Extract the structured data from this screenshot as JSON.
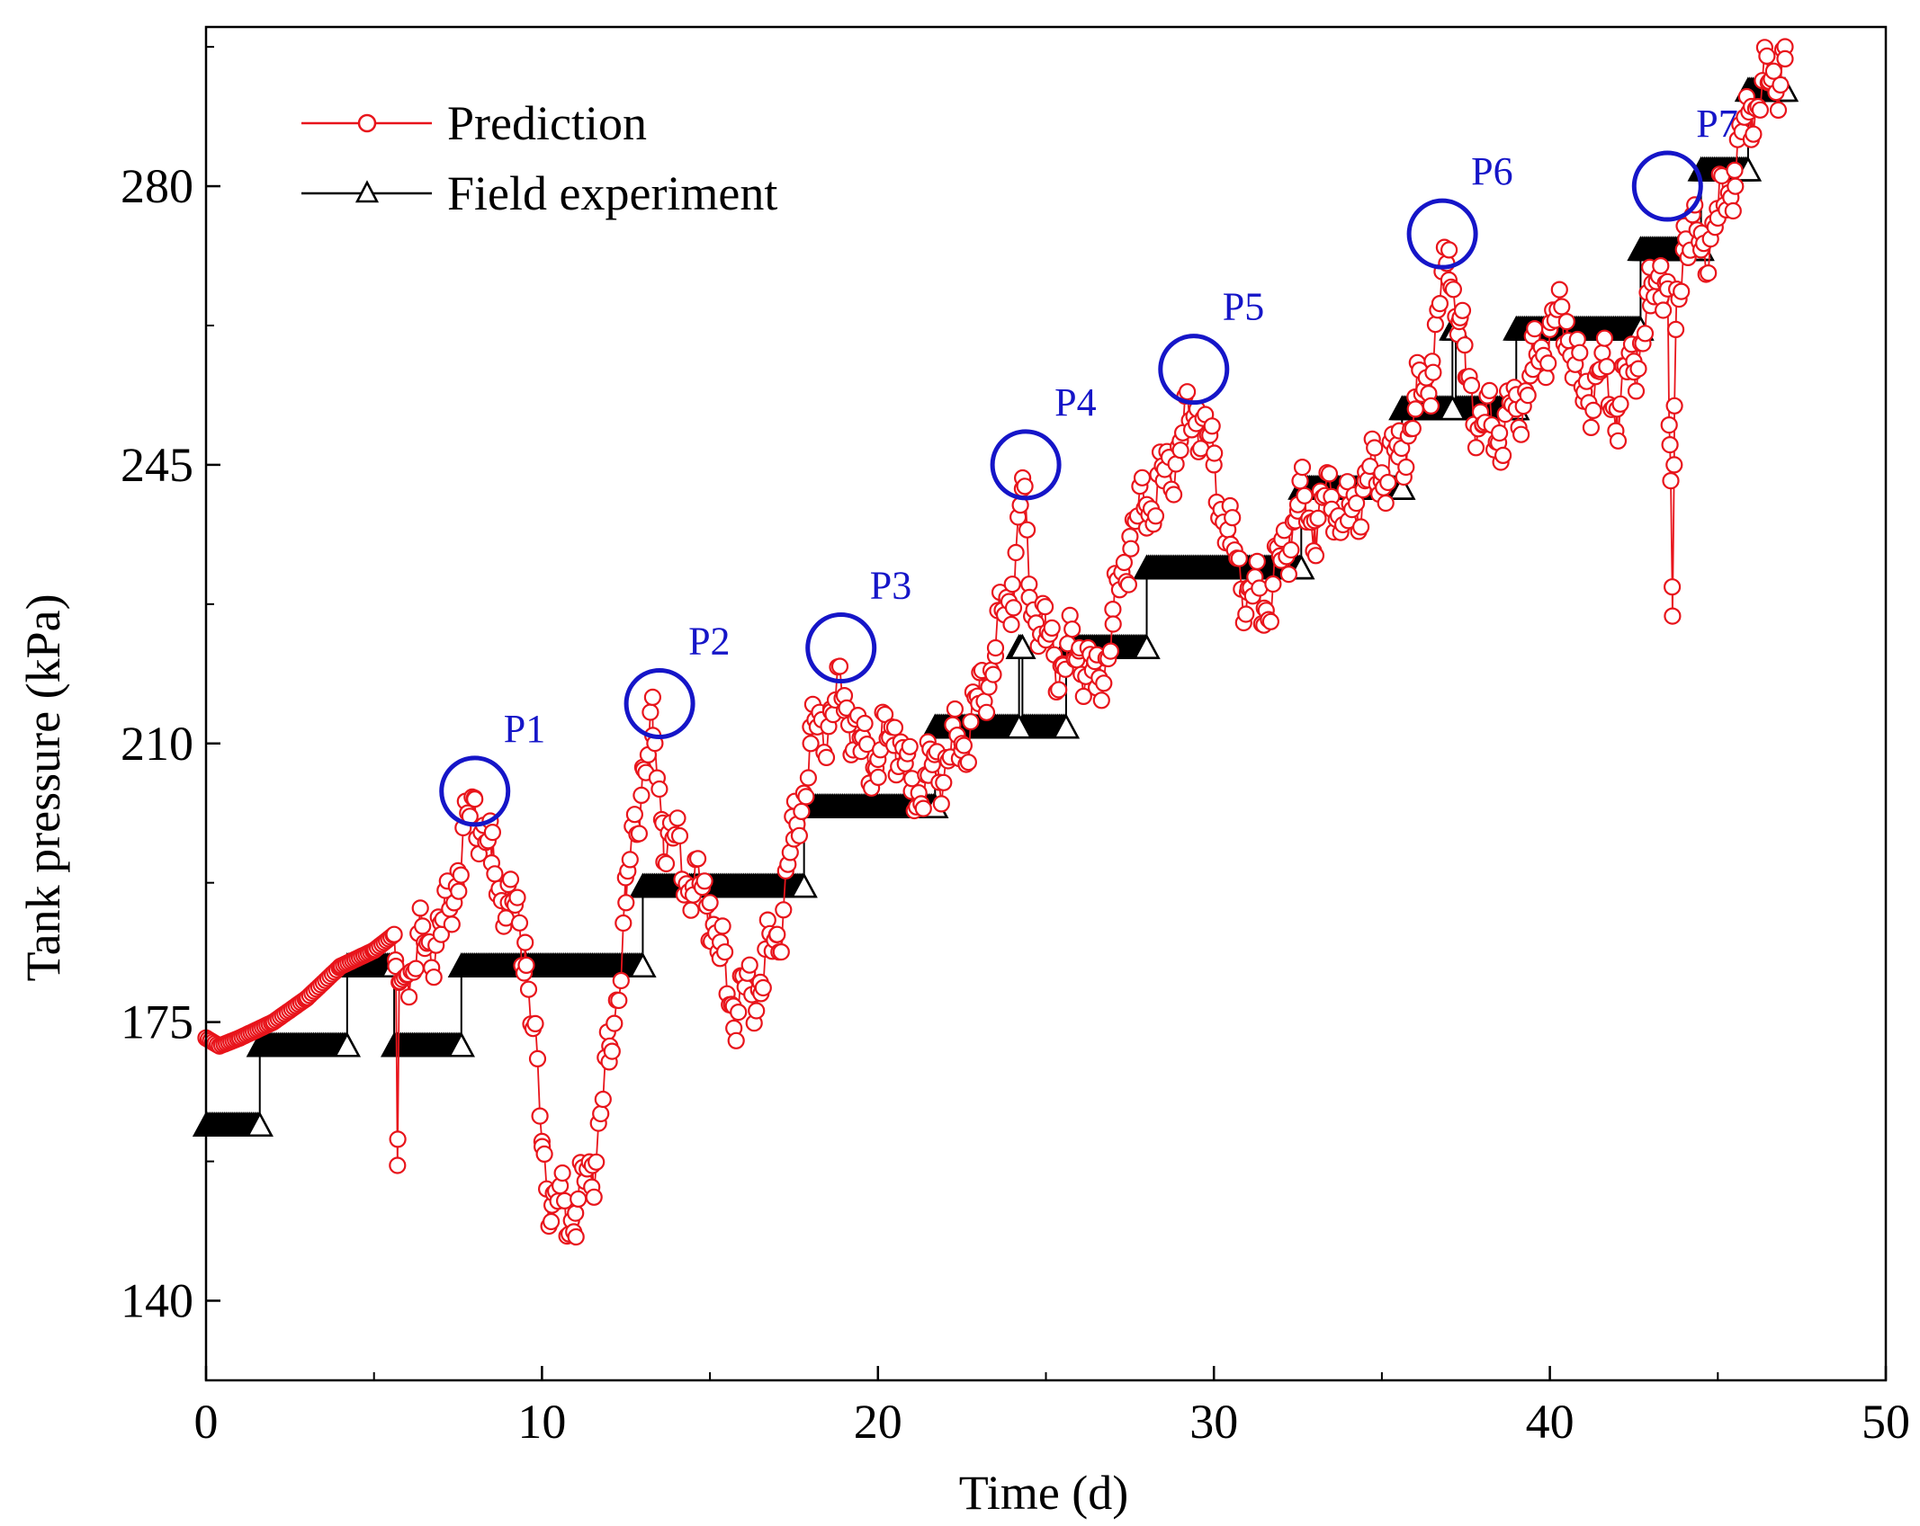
{
  "colors": {
    "prediction": "#e8141b",
    "field": "#000000",
    "peak_circle": "#1515c8",
    "peak_label": "#1515c8",
    "axis": "#000000"
  },
  "chart_data": {
    "type": "line",
    "xlabel": "Time (d)",
    "ylabel": "Tank pressure (kPa)",
    "xlim": [
      0,
      50
    ],
    "ylim": [
      130,
      300
    ],
    "xticks": [
      0,
      10,
      20,
      30,
      40,
      50
    ],
    "yticks": [
      140,
      175,
      210,
      245,
      280
    ],
    "legend_position": "top-left",
    "series": [
      {
        "name": "Prediction",
        "marker": "circle",
        "color": "#e8141b",
        "anchors": [
          [
            0.0,
            173
          ],
          [
            0.4,
            172
          ],
          [
            1.0,
            173
          ],
          [
            2.0,
            175
          ],
          [
            3.0,
            178
          ],
          [
            4.0,
            182
          ],
          [
            5.0,
            184
          ],
          [
            5.6,
            186
          ],
          [
            5.65,
            182
          ],
          [
            5.7,
            157
          ],
          [
            5.75,
            180
          ],
          [
            6.0,
            181
          ],
          [
            6.5,
            185
          ],
          [
            7.0,
            186
          ],
          [
            7.5,
            194
          ],
          [
            8.0,
            203
          ],
          [
            8.5,
            195
          ],
          [
            9.0,
            190
          ],
          [
            9.5,
            185
          ],
          [
            10.0,
            160
          ],
          [
            10.3,
            152
          ],
          [
            11.0,
            151
          ],
          [
            11.5,
            157
          ],
          [
            12.0,
            170
          ],
          [
            12.5,
            190
          ],
          [
            13.0,
            207
          ],
          [
            13.3,
            211
          ],
          [
            13.6,
            200
          ],
          [
            14.5,
            192
          ],
          [
            15.0,
            190
          ],
          [
            15.3,
            183
          ],
          [
            15.7,
            177
          ],
          [
            16.5,
            180
          ],
          [
            17.0,
            186
          ],
          [
            17.5,
            198
          ],
          [
            18.0,
            210
          ],
          [
            18.6,
            214
          ],
          [
            19.0,
            216
          ],
          [
            19.5,
            209
          ],
          [
            20.0,
            208
          ],
          [
            20.5,
            212
          ],
          [
            21.0,
            204
          ],
          [
            21.5,
            206
          ],
          [
            22.5,
            210
          ],
          [
            23.0,
            215
          ],
          [
            23.5,
            222
          ],
          [
            24.0,
            230
          ],
          [
            24.3,
            242
          ],
          [
            24.5,
            230
          ],
          [
            25.0,
            223
          ],
          [
            25.5,
            220
          ],
          [
            26.0,
            222
          ],
          [
            26.5,
            217
          ],
          [
            27.0,
            225
          ],
          [
            27.5,
            236
          ],
          [
            28.0,
            240
          ],
          [
            28.5,
            243
          ],
          [
            29.0,
            248
          ],
          [
            29.5,
            252
          ],
          [
            30.0,
            245
          ],
          [
            30.5,
            235
          ],
          [
            31.0,
            229
          ],
          [
            31.5,
            227
          ],
          [
            32.0,
            233
          ],
          [
            32.5,
            240
          ],
          [
            33.0,
            238
          ],
          [
            33.5,
            241
          ],
          [
            34.0,
            238
          ],
          [
            34.5,
            243
          ],
          [
            35.0,
            244
          ],
          [
            35.5,
            246
          ],
          [
            36.0,
            252
          ],
          [
            36.5,
            258
          ],
          [
            37.0,
            272
          ],
          [
            37.3,
            263
          ],
          [
            37.5,
            256
          ],
          [
            38.0,
            250
          ],
          [
            38.5,
            249
          ],
          [
            39.0,
            252
          ],
          [
            39.5,
            257
          ],
          [
            40.0,
            262
          ],
          [
            40.5,
            263
          ],
          [
            41.0,
            253
          ],
          [
            41.5,
            257
          ],
          [
            42.0,
            252
          ],
          [
            42.5,
            258
          ],
          [
            43.0,
            265
          ],
          [
            43.3,
            270
          ],
          [
            43.5,
            268
          ],
          [
            43.55,
            250
          ],
          [
            43.6,
            243
          ],
          [
            43.65,
            226
          ],
          [
            43.7,
            245
          ],
          [
            43.75,
            262
          ],
          [
            44.0,
            275
          ],
          [
            44.5,
            272
          ],
          [
            45.0,
            276
          ],
          [
            45.5,
            282
          ],
          [
            46.0,
            290
          ],
          [
            46.5,
            293
          ],
          [
            47.0,
            296
          ]
        ]
      },
      {
        "name": "Field experiment",
        "marker": "triangle",
        "color": "#000000",
        "steps": [
          {
            "x0": 0.0,
            "x1": 1.6,
            "y": 162
          },
          {
            "x0": 1.6,
            "x1": 4.2,
            "y": 172
          },
          {
            "x0": 4.2,
            "x1": 5.6,
            "y": 182
          },
          {
            "x0": 5.6,
            "x1": 7.6,
            "y": 172
          },
          {
            "x0": 7.6,
            "x1": 13.0,
            "y": 182
          },
          {
            "x0": 13.0,
            "x1": 17.8,
            "y": 192
          },
          {
            "x0": 17.8,
            "x1": 21.7,
            "y": 202
          },
          {
            "x0": 21.7,
            "x1": 24.2,
            "y": 212
          },
          {
            "x0": 24.2,
            "x1": 24.3,
            "y": 222
          },
          {
            "x0": 24.3,
            "x1": 25.6,
            "y": 212
          },
          {
            "x0": 25.6,
            "x1": 28.0,
            "y": 222
          },
          {
            "x0": 28.0,
            "x1": 32.6,
            "y": 232
          },
          {
            "x0": 32.6,
            "x1": 35.6,
            "y": 242
          },
          {
            "x0": 35.6,
            "x1": 37.1,
            "y": 252
          },
          {
            "x0": 37.1,
            "x1": 37.2,
            "y": 262
          },
          {
            "x0": 37.2,
            "x1": 39.0,
            "y": 252
          },
          {
            "x0": 39.0,
            "x1": 42.7,
            "y": 262
          },
          {
            "x0": 42.7,
            "x1": 44.5,
            "y": 272
          },
          {
            "x0": 44.5,
            "x1": 45.9,
            "y": 282
          },
          {
            "x0": 45.9,
            "x1": 47.0,
            "y": 292
          }
        ]
      }
    ],
    "peaks": [
      {
        "label": "P1",
        "x": 8.0,
        "y": 204
      },
      {
        "label": "P2",
        "x": 13.5,
        "y": 215
      },
      {
        "label": "P3",
        "x": 18.9,
        "y": 222
      },
      {
        "label": "P4",
        "x": 24.4,
        "y": 245
      },
      {
        "label": "P5",
        "x": 29.4,
        "y": 257
      },
      {
        "label": "P6",
        "x": 36.8,
        "y": 274
      },
      {
        "label": "P7",
        "x": 43.5,
        "y": 280
      }
    ]
  }
}
